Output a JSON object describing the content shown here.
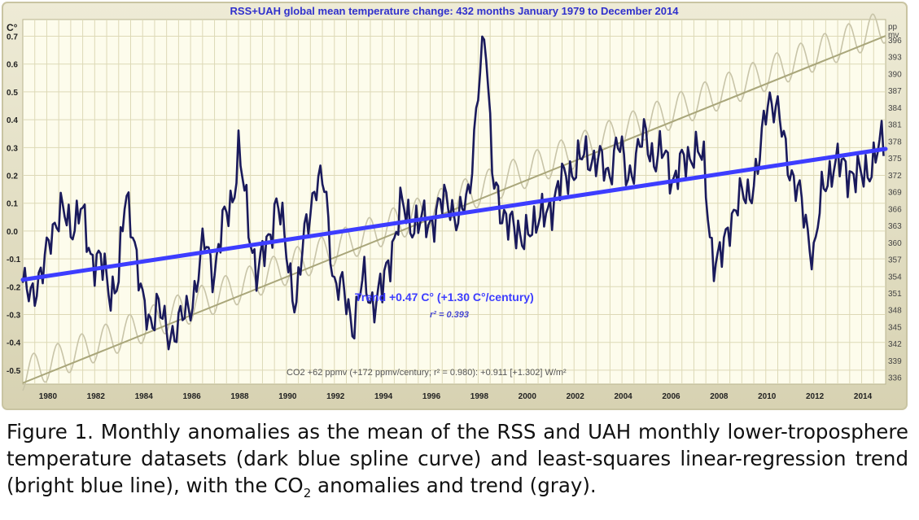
{
  "chart_data": {
    "type": "line",
    "title": "RSS+UAH global mean temperature change: 432 months January 1979 to December 2014",
    "ylabel_left": "C°",
    "ylabel_right_top": "pp",
    "ylabel_right_bottom": "mv",
    "xlim": [
      1979.0,
      2015.0
    ],
    "ylim": [
      -0.55,
      0.76
    ],
    "y_ticks": [
      "0.7",
      "0.6",
      "0.5",
      "0.4",
      "0.3",
      "0.2",
      "0.1",
      "0.0",
      "-0.1",
      "-0.2",
      "-0.3",
      "-0.4",
      "-0.5"
    ],
    "y_tick_values": [
      0.7,
      0.6,
      0.5,
      0.4,
      0.3,
      0.2,
      0.1,
      0.0,
      -0.1,
      -0.2,
      -0.3,
      -0.4,
      -0.5
    ],
    "y2_ticks": [
      "396",
      "393",
      "390",
      "387",
      "384",
      "381",
      "378",
      "375",
      "372",
      "369",
      "366",
      "363",
      "360",
      "357",
      "354",
      "351",
      "348",
      "345",
      "342",
      "339",
      "336"
    ],
    "y2_range_ppmv": [
      334.8,
      399.6
    ],
    "x_ticks": [
      "1980",
      "1982",
      "1984",
      "1986",
      "1988",
      "1990",
      "1992",
      "1994",
      "1996",
      "1998",
      "2000",
      "2002",
      "2004",
      "2006",
      "2008",
      "2010",
      "2012",
      "2014"
    ],
    "series": [
      {
        "name": "RSS+UAH monthly anomaly",
        "color": "#1a1a5c",
        "x": [
          1979.0,
          1979.4,
          1979.8,
          1980.2,
          1980.6,
          1981.0,
          1981.4,
          1981.8,
          1982.2,
          1982.6,
          1983.0,
          1983.3,
          1983.6,
          1984.0,
          1984.3,
          1984.6,
          1985.0,
          1985.4,
          1985.8,
          1986.2,
          1986.6,
          1987.0,
          1987.4,
          1987.8,
          1988.0,
          1988.4,
          1988.8,
          1989.2,
          1989.6,
          1990.0,
          1990.4,
          1990.8,
          1991.2,
          1991.6,
          1992.0,
          1992.4,
          1992.8,
          1993.2,
          1993.6,
          1994.0,
          1994.4,
          1994.8,
          1995.2,
          1995.6,
          1996.0,
          1996.4,
          1996.8,
          1997.2,
          1997.6,
          1998.0,
          1998.3,
          1998.6,
          1999.0,
          1999.4,
          1999.8,
          2000.2,
          2000.6,
          2001.0,
          2001.4,
          2001.8,
          2002.2,
          2002.6,
          2003.0,
          2003.4,
          2003.8,
          2004.2,
          2004.6,
          2005.0,
          2005.4,
          2005.8,
          2006.2,
          2006.6,
          2007.0,
          2007.4,
          2007.8,
          2008.1,
          2008.5,
          2008.9,
          2009.3,
          2009.7,
          2010.1,
          2010.4,
          2010.8,
          2011.2,
          2011.6,
          2012.0,
          2012.4,
          2012.8,
          2013.2,
          2013.6,
          2014.0,
          2014.4,
          2014.8,
          2015.0
        ],
        "values": [
          -0.22,
          -0.2,
          -0.18,
          0.02,
          0.06,
          0.02,
          0.08,
          -0.08,
          -0.1,
          -0.22,
          -0.16,
          0.12,
          0.02,
          -0.28,
          -0.33,
          -0.25,
          -0.38,
          -0.34,
          -0.31,
          -0.2,
          -0.04,
          -0.14,
          0.03,
          0.15,
          0.28,
          0.04,
          -0.16,
          -0.05,
          0.12,
          -0.08,
          -0.26,
          0.0,
          0.18,
          0.15,
          -0.18,
          -0.23,
          -0.33,
          -0.18,
          -0.25,
          -0.22,
          -0.05,
          0.08,
          0.04,
          0.02,
          0.04,
          0.08,
          0.12,
          0.02,
          0.14,
          0.5,
          0.7,
          0.25,
          0.0,
          0.08,
          -0.08,
          0.05,
          0.02,
          0.1,
          0.15,
          0.22,
          0.24,
          0.28,
          0.25,
          0.2,
          0.32,
          0.2,
          0.26,
          0.35,
          0.25,
          0.28,
          0.18,
          0.25,
          0.3,
          0.24,
          -0.1,
          -0.12,
          0.05,
          0.1,
          0.15,
          0.22,
          0.5,
          0.45,
          0.3,
          0.18,
          0.05,
          -0.08,
          0.15,
          0.25,
          0.22,
          0.22,
          0.18,
          0.25,
          0.3,
          0.31
        ]
      },
      {
        "name": "Least-squares linear-regression trend",
        "color": "#3d3dff",
        "x": [
          1979.0,
          2015.0
        ],
        "values": [
          -0.175,
          0.295
        ]
      },
      {
        "name": "CO2 anomaly",
        "color": "#c8c4a8",
        "axis": "right",
        "x": [
          1979.0,
          2015.0
        ],
        "values_ppmv": [
          336.5,
          398.5
        ]
      },
      {
        "name": "CO2 trend",
        "color": "#a9a67a",
        "axis": "right",
        "x": [
          1979.0,
          2015.0
        ],
        "values_ppmv": [
          335.0,
          396.7
        ]
      }
    ],
    "annotations": {
      "trend_label": "Trend +0.47 C° (+1.30 C°/century)",
      "r2_label": "r² = 0.393",
      "co2_label": "CO2 +62 ppmv (+172 ppmv/century; r² = 0.980): +0.911 [+1.302] W/m²"
    }
  },
  "caption": {
    "part1": "Figure 1. Monthly anomalies as the mean of the RSS and UAH monthly lower-troposphere temperature datasets (dark blue spline curve) and least-squares linear-regression trend (bright blue line), with the CO",
    "subscript": "2",
    "part2": " anomalies and trend (gray)."
  },
  "colors": {
    "frame": "#e0dcc4",
    "plot_bg": "#fdfcec",
    "grid": "#ddd9b6",
    "temp_line": "#1a1a5c",
    "trend_line": "#3d3dff",
    "co2_curve": "#c8c4a8",
    "co2_trend": "#a9a67a",
    "title_text": "#3030cc"
  }
}
